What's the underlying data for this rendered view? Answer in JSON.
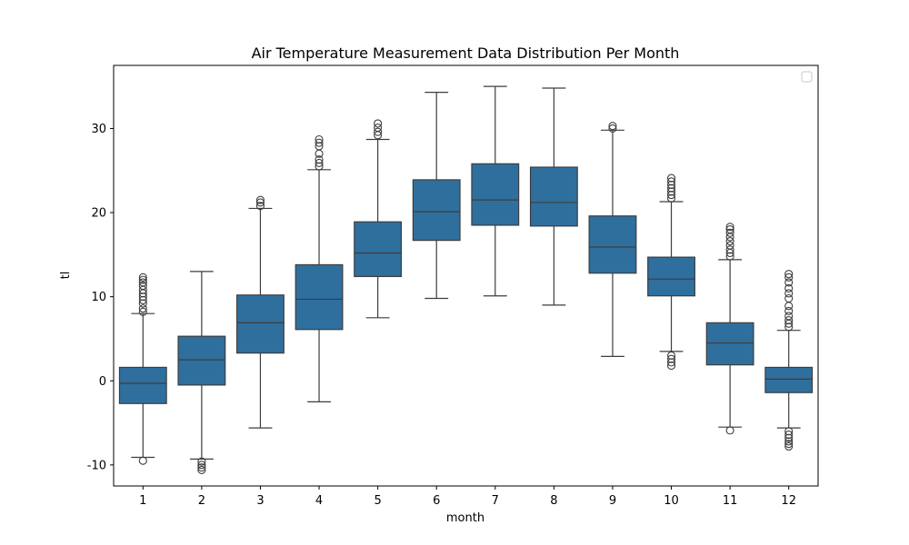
{
  "chart_data": {
    "type": "box",
    "title": "Air Temperature Measurement Data Distribution Per Month",
    "xlabel": "month",
    "ylabel": "tl",
    "ylim": [
      -12.5,
      37.5
    ],
    "yticks": [
      -10,
      0,
      10,
      20,
      30
    ],
    "grid": false,
    "legend": "top-right (empty)",
    "colors": {
      "box": "#2f6f9e",
      "line": "#3d3d3d",
      "frame": "#000000"
    },
    "categories": [
      "1",
      "2",
      "3",
      "4",
      "5",
      "6",
      "7",
      "8",
      "9",
      "10",
      "11",
      "12"
    ],
    "series": [
      {
        "category": "1",
        "whisker_low": -9.1,
        "q1": -2.7,
        "median": -0.3,
        "q3": 1.6,
        "whisker_high": 8.0,
        "outliers": [
          -9.5,
          8.2,
          8.6,
          9.2,
          9.6,
          10.0,
          10.4,
          10.8,
          11.3,
          11.7,
          12.0,
          12.3
        ]
      },
      {
        "category": "2",
        "whisker_low": -9.3,
        "q1": -0.5,
        "median": 2.5,
        "q3": 5.3,
        "whisker_high": 13.0,
        "outliers": [
          -9.6,
          -10.0,
          -10.3,
          -10.6
        ]
      },
      {
        "category": "3",
        "whisker_low": -5.6,
        "q1": 3.3,
        "median": 6.9,
        "q3": 10.2,
        "whisker_high": 20.5,
        "outliers": [
          20.8,
          21.2,
          21.5
        ]
      },
      {
        "category": "4",
        "whisker_low": -2.5,
        "q1": 6.1,
        "median": 9.7,
        "q3": 13.8,
        "whisker_high": 25.1,
        "outliers": [
          25.5,
          25.9,
          26.3,
          27.0,
          27.9,
          28.3,
          28.7
        ]
      },
      {
        "category": "5",
        "whisker_low": 7.5,
        "q1": 12.4,
        "median": 15.2,
        "q3": 18.9,
        "whisker_high": 28.7,
        "outliers": [
          29.2,
          29.6,
          30.1,
          30.6
        ]
      },
      {
        "category": "6",
        "whisker_low": 9.8,
        "q1": 16.7,
        "median": 20.1,
        "q3": 23.9,
        "whisker_high": 34.3,
        "outliers": []
      },
      {
        "category": "7",
        "whisker_low": 10.1,
        "q1": 18.5,
        "median": 21.5,
        "q3": 25.8,
        "whisker_high": 35.0,
        "outliers": []
      },
      {
        "category": "8",
        "whisker_low": 9.0,
        "q1": 18.4,
        "median": 21.2,
        "q3": 25.4,
        "whisker_high": 34.8,
        "outliers": []
      },
      {
        "category": "9",
        "whisker_low": 2.9,
        "q1": 12.8,
        "median": 15.9,
        "q3": 19.6,
        "whisker_high": 29.8,
        "outliers": [
          30.0,
          30.3
        ]
      },
      {
        "category": "10",
        "whisker_low": 3.5,
        "q1": 10.1,
        "median": 12.1,
        "q3": 14.7,
        "whisker_high": 21.3,
        "outliers": [
          3.0,
          2.6,
          2.2,
          1.8,
          21.7,
          22.1,
          22.5,
          22.9,
          23.3,
          23.7,
          24.1
        ]
      },
      {
        "category": "11",
        "whisker_low": -5.5,
        "q1": 1.9,
        "median": 4.5,
        "q3": 6.9,
        "whisker_high": 14.4,
        "outliers": [
          -5.9,
          14.8,
          15.2,
          15.6,
          16.1,
          16.6,
          17.1,
          17.6,
          18.0,
          18.3
        ]
      },
      {
        "category": "12",
        "whisker_low": -5.6,
        "q1": -1.4,
        "median": 0.2,
        "q3": 1.6,
        "whisker_high": 6.0,
        "outliers": [
          -6.0,
          -6.4,
          -6.8,
          -7.2,
          -7.5,
          -7.8,
          6.4,
          6.8,
          7.2,
          7.7,
          8.3,
          8.9,
          9.8,
          10.4,
          11.0,
          11.7,
          12.3,
          12.7
        ]
      }
    ]
  }
}
